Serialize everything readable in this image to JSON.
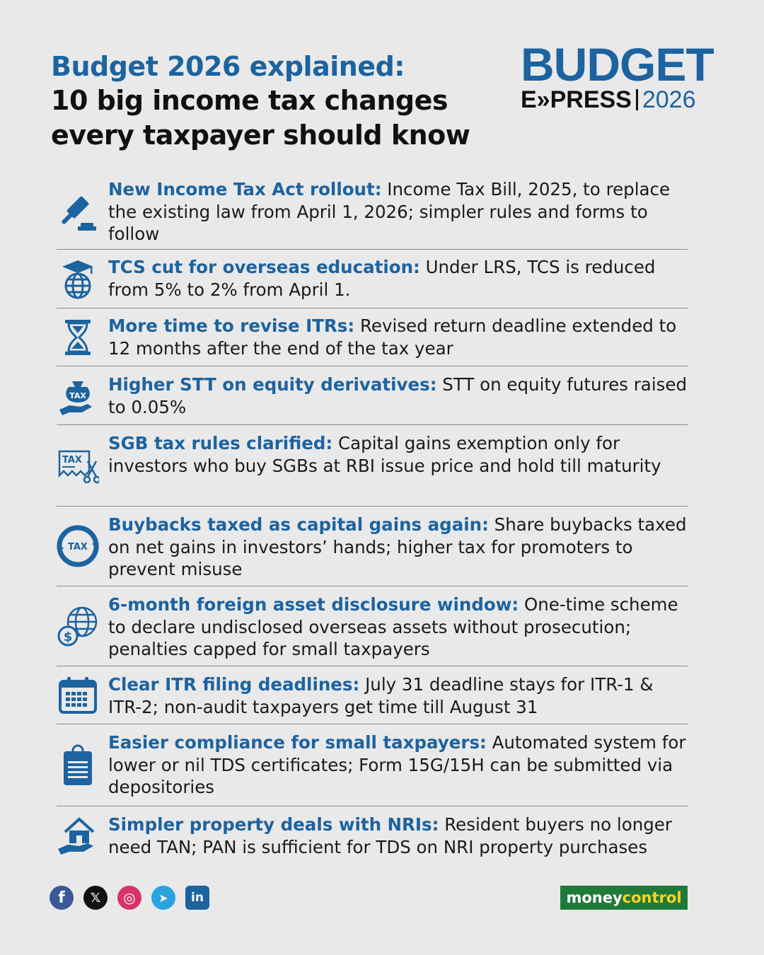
{
  "title": {
    "line1": "Budget 2026 explained:",
    "line2": "10 big income tax changes",
    "line3": "every taxpayer should know"
  },
  "logo": {
    "budget": "BUDGET",
    "express": "E»PRESS",
    "year": "2026"
  },
  "items": [
    {
      "icon": "gavel-icon",
      "heading": "New Income Tax Act rollout:",
      "text": " Income Tax Bill, 2025, to replace the existing law from April 1, 2026; simpler rules and forms to follow"
    },
    {
      "icon": "graduation-globe-icon",
      "heading": "TCS cut for overseas education:",
      "text": " Under LRS, TCS is reduced from 5% to 2% from April 1."
    },
    {
      "icon": "hourglass-icon",
      "heading": "More time to revise ITRs:",
      "text": " Revised return deadline extended to 12 months after the end of the tax year"
    },
    {
      "icon": "tax-bag-hand-icon",
      "heading": "Higher STT on equity derivatives:",
      "text": " STT on equity futures raised to 0.05%"
    },
    {
      "icon": "tax-scissors-icon",
      "heading": "SGB tax rules clarified:",
      "text": " Capital gains exemption only for investors who buy SGBs at RBI issue price and hold till maturity"
    },
    {
      "icon": "tax-cycle-icon",
      "heading": "Buybacks taxed as capital gains again:",
      "text": " Share buybacks taxed on net gains in investors’ hands; higher tax for promoters to prevent misuse"
    },
    {
      "icon": "globe-dollar-icon",
      "heading": "6-month foreign asset disclosure window:",
      "text": " One-time scheme to declare undisclosed overseas assets without prosecution; penalties capped for small taxpayers"
    },
    {
      "icon": "calendar-icon",
      "heading": "Clear ITR filing deadlines:",
      "text": " July 31 deadline stays for ITR-1 & ITR-2; non-audit taxpayers get time till August 31"
    },
    {
      "icon": "clipboard-icon",
      "heading": "Easier compliance for small taxpayers:",
      "text": " Automated system for lower or nil TDS certificates; Form 15G/15H can be submitted via depositories"
    },
    {
      "icon": "house-hand-icon",
      "heading": "Simpler property deals with NRIs:",
      "text": " Resident buyers no longer need TAN; PAN is sufficient for TDS on NRI property purchases"
    }
  ],
  "social": [
    {
      "name": "facebook-icon",
      "glyph": "f",
      "color": "#3b5998"
    },
    {
      "name": "x-icon",
      "glyph": "𝕏",
      "color": "#111111"
    },
    {
      "name": "instagram-icon",
      "glyph": "◎",
      "color": "#d6336c"
    },
    {
      "name": "telegram-icon",
      "glyph": "➤",
      "color": "#2aa3de"
    },
    {
      "name": "linkedin-icon",
      "glyph": "in",
      "color": "#1d63a0"
    }
  ],
  "brand": {
    "part1": "money",
    "part2": "control"
  },
  "colors": {
    "accent": "#1d63a0",
    "background": "#e9e9e9",
    "brand_green": "#1f7a3a",
    "brand_yellow": "#ffd21f"
  }
}
